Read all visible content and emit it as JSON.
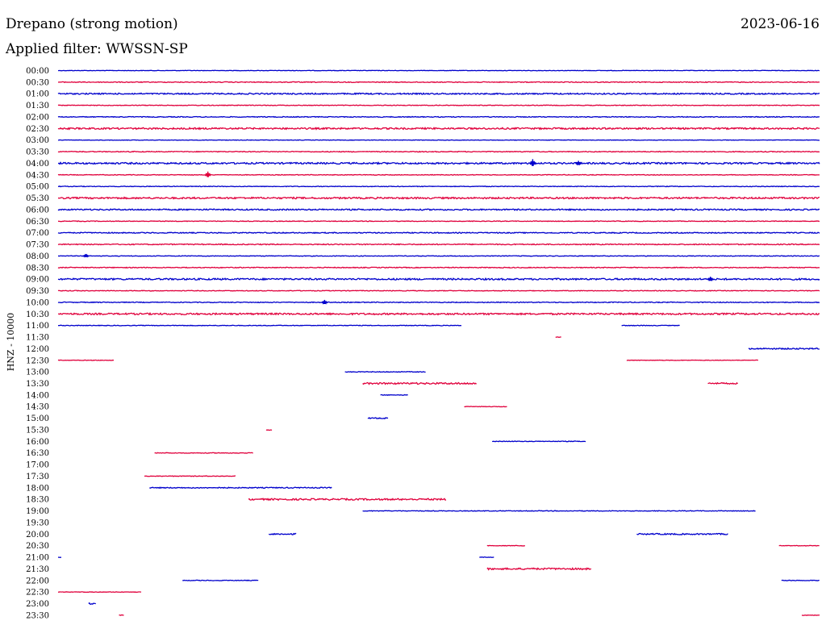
{
  "header": {
    "station_title": "Drepano (strong motion)",
    "date": "2023-06-16",
    "filter_label": "Applied filter: WWSSN-SP"
  },
  "chart_data": {
    "type": "line",
    "title": "Drepano (strong motion)",
    "ylabel": "HNZ - 10000",
    "xlabel": "",
    "x_unit": "minutes past row start",
    "xlim": [
      0,
      30
    ],
    "colors": {
      "even_row": "#0000cc",
      "odd_row": "#e0003c"
    },
    "rows": [
      {
        "label": "00:00",
        "segments": [
          [
            0,
            30,
            0.3
          ]
        ],
        "events": []
      },
      {
        "label": "00:30",
        "segments": [
          [
            0,
            30,
            0.5
          ]
        ],
        "events": []
      },
      {
        "label": "01:00",
        "segments": [
          [
            0,
            30,
            0.8
          ]
        ],
        "events": []
      },
      {
        "label": "01:30",
        "segments": [
          [
            0,
            30,
            0.4
          ]
        ],
        "events": []
      },
      {
        "label": "02:00",
        "segments": [
          [
            0,
            30,
            0.5
          ]
        ],
        "events": []
      },
      {
        "label": "02:30",
        "segments": [
          [
            0,
            30,
            1.0
          ]
        ],
        "events": []
      },
      {
        "label": "03:00",
        "segments": [
          [
            0,
            30,
            0.3
          ]
        ],
        "events": []
      },
      {
        "label": "03:30",
        "segments": [
          [
            0,
            30,
            0.5
          ]
        ],
        "events": []
      },
      {
        "label": "04:00",
        "segments": [
          [
            0,
            30,
            1.0
          ]
        ],
        "events": [
          [
            18.7,
            5
          ],
          [
            20.5,
            3
          ]
        ]
      },
      {
        "label": "04:30",
        "segments": [
          [
            0,
            30,
            0.4
          ]
        ],
        "events": [
          [
            5.9,
            4
          ]
        ]
      },
      {
        "label": "05:00",
        "segments": [
          [
            0,
            30,
            0.4
          ]
        ],
        "events": []
      },
      {
        "label": "05:30",
        "segments": [
          [
            0,
            30,
            1.0
          ]
        ],
        "events": []
      },
      {
        "label": "06:00",
        "segments": [
          [
            0,
            30,
            0.8
          ]
        ],
        "events": []
      },
      {
        "label": "06:30",
        "segments": [
          [
            0,
            30,
            0.4
          ]
        ],
        "events": []
      },
      {
        "label": "07:00",
        "segments": [
          [
            0,
            30,
            0.6
          ]
        ],
        "events": []
      },
      {
        "label": "07:30",
        "segments": [
          [
            0,
            30,
            0.6
          ]
        ],
        "events": []
      },
      {
        "label": "08:00",
        "segments": [
          [
            0,
            30,
            0.4
          ]
        ],
        "events": [
          [
            1.1,
            2
          ]
        ]
      },
      {
        "label": "08:30",
        "segments": [
          [
            0,
            30,
            0.5
          ]
        ],
        "events": []
      },
      {
        "label": "09:00",
        "segments": [
          [
            0,
            30,
            1.0
          ]
        ],
        "events": [
          [
            25.7,
            3
          ]
        ]
      },
      {
        "label": "09:30",
        "segments": [
          [
            0,
            30,
            0.4
          ]
        ],
        "events": []
      },
      {
        "label": "10:00",
        "segments": [
          [
            0,
            30,
            0.5
          ]
        ],
        "events": [
          [
            10.5,
            3
          ]
        ]
      },
      {
        "label": "10:30",
        "segments": [
          [
            0,
            30,
            1.0
          ]
        ],
        "events": []
      },
      {
        "label": "11:00",
        "segments": [
          [
            0,
            15.9,
            0.4
          ],
          [
            22.2,
            24.5,
            0.4
          ]
        ],
        "events": []
      },
      {
        "label": "11:30",
        "segments": [
          [
            19.6,
            19.85,
            0.3
          ]
        ],
        "events": []
      },
      {
        "label": "12:00",
        "segments": [
          [
            27.2,
            30,
            0.8
          ]
        ],
        "events": []
      },
      {
        "label": "12:30",
        "segments": [
          [
            0,
            2.2,
            0.3
          ],
          [
            22.4,
            27.6,
            0.3
          ]
        ],
        "events": []
      },
      {
        "label": "13:00",
        "segments": [
          [
            11.3,
            14.5,
            0.4
          ]
        ],
        "events": []
      },
      {
        "label": "13:30",
        "segments": [
          [
            12.0,
            16.5,
            1.0
          ],
          [
            25.6,
            26.8,
            0.8
          ]
        ],
        "events": []
      },
      {
        "label": "14:00",
        "segments": [
          [
            12.7,
            13.8,
            0.4
          ]
        ],
        "events": []
      },
      {
        "label": "14:30",
        "segments": [
          [
            16.0,
            17.7,
            0.3
          ]
        ],
        "events": []
      },
      {
        "label": "15:00",
        "segments": [
          [
            12.2,
            13.0,
            0.7
          ]
        ],
        "events": []
      },
      {
        "label": "15:30",
        "segments": [
          [
            8.2,
            8.45,
            0.6
          ]
        ],
        "events": []
      },
      {
        "label": "16:00",
        "segments": [
          [
            17.1,
            20.8,
            0.4
          ]
        ],
        "events": []
      },
      {
        "label": "16:30",
        "segments": [
          [
            3.8,
            7.7,
            0.4
          ]
        ],
        "events": []
      },
      {
        "label": "17:00",
        "segments": [],
        "events": []
      },
      {
        "label": "17:30",
        "segments": [
          [
            3.4,
            7.0,
            0.4
          ]
        ],
        "events": []
      },
      {
        "label": "18:00",
        "segments": [
          [
            3.6,
            10.8,
            0.6
          ]
        ],
        "events": []
      },
      {
        "label": "18:30",
        "segments": [
          [
            7.5,
            15.3,
            1.0
          ]
        ],
        "events": []
      },
      {
        "label": "19:00",
        "segments": [
          [
            12.0,
            27.5,
            0.4
          ]
        ],
        "events": []
      },
      {
        "label": "19:30",
        "segments": [],
        "events": []
      },
      {
        "label": "20:00",
        "segments": [
          [
            8.3,
            9.4,
            0.8
          ],
          [
            22.8,
            26.4,
            0.8
          ]
        ],
        "events": []
      },
      {
        "label": "20:30",
        "segments": [
          [
            16.9,
            18.4,
            0.3
          ],
          [
            28.4,
            30,
            0.3
          ]
        ],
        "events": []
      },
      {
        "label": "21:00",
        "segments": [
          [
            0,
            0.15,
            0.3
          ],
          [
            16.6,
            17.2,
            0.3
          ]
        ],
        "events": []
      },
      {
        "label": "21:30",
        "segments": [
          [
            16.9,
            21.0,
            1.0
          ]
        ],
        "events": []
      },
      {
        "label": "22:00",
        "segments": [
          [
            4.9,
            7.9,
            0.4
          ],
          [
            28.5,
            30,
            0.4
          ]
        ],
        "events": []
      },
      {
        "label": "22:30",
        "segments": [
          [
            0,
            3.3,
            0.3
          ]
        ],
        "events": []
      },
      {
        "label": "23:00",
        "segments": [
          [
            1.2,
            1.5,
            0.8
          ]
        ],
        "events": []
      },
      {
        "label": "23:30",
        "segments": [
          [
            2.4,
            2.6,
            0.3
          ],
          [
            29.3,
            30,
            0.3
          ]
        ],
        "events": []
      }
    ]
  }
}
